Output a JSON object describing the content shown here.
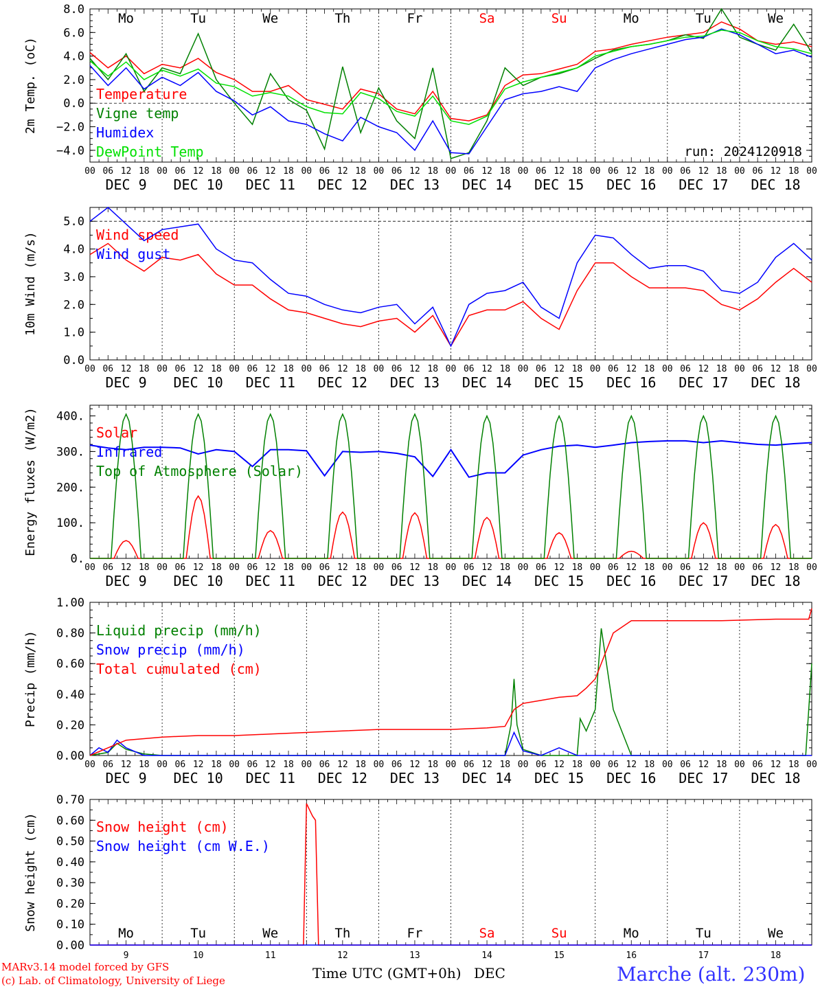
{
  "footer": {
    "model": "MARv3.14 model forced by GFS",
    "credit": "(c) Lab. of Climatology, University of Liege",
    "station": "Marche (alt. 230m)",
    "xlabel": "Time UTC (GMT+0h)",
    "month": "DEC"
  },
  "days": {
    "weekday": [
      "Mo",
      "Tu",
      "We",
      "Th",
      "Fr",
      "Sa",
      "Su",
      "Mo",
      "Tu",
      "We"
    ],
    "weekend": [
      false,
      false,
      false,
      false,
      false,
      true,
      true,
      false,
      false,
      false
    ],
    "date_labels": [
      "DEC  9",
      "DEC 10",
      "DEC 11",
      "DEC 12",
      "DEC 13",
      "DEC 14",
      "DEC 15",
      "DEC 16",
      "DEC 17",
      "DEC 18"
    ],
    "day_numbers": [
      "9",
      "10",
      "11",
      "12",
      "13",
      "14",
      "15",
      "16",
      "17",
      "18"
    ],
    "hour_ticks": [
      "00",
      "06",
      "12",
      "18"
    ],
    "last_tick": "00"
  },
  "colors": {
    "red": "#ff0000",
    "green": "#008000",
    "blue": "#0000ff",
    "lightgreen": "#00e000",
    "grid": "#000000"
  },
  "chart_data": [
    {
      "type": "line",
      "ylabel": "2m Temp. (oC)",
      "ylim": [
        -5,
        8
      ],
      "yticks": [
        "8.0",
        "6.0",
        "4.0",
        "2.0",
        "0.0",
        "−2.0",
        "−4.0"
      ],
      "annotation": "run: 2024120918",
      "x_unit": "hours since DEC 9 00 UTC",
      "series": [
        {
          "name": "Temperature",
          "color": "red",
          "x": [
            0,
            6,
            12,
            18,
            24,
            30,
            36,
            42,
            48,
            54,
            60,
            66,
            72,
            78,
            84,
            90,
            96,
            102,
            108,
            114,
            120,
            126,
            132,
            138,
            144,
            150,
            156,
            162,
            168,
            174,
            180,
            186,
            192,
            198,
            204,
            210,
            216,
            222,
            228,
            234,
            240
          ],
          "values": [
            4.3,
            3.0,
            4.0,
            2.5,
            3.3,
            3.0,
            3.8,
            2.6,
            2.0,
            1.0,
            1.0,
            1.5,
            0.3,
            -0.1,
            -0.5,
            1.2,
            0.8,
            -0.5,
            -0.9,
            1.0,
            -1.3,
            -1.5,
            -1.0,
            1.5,
            2.4,
            2.5,
            2.9,
            3.3,
            4.4,
            4.6,
            5.0,
            5.3,
            5.6,
            5.8,
            6.0,
            6.9,
            6.3,
            5.3,
            5.0,
            5.2,
            4.8
          ]
        },
        {
          "name": "Vigne temp",
          "color": "green",
          "x": [
            0,
            6,
            12,
            18,
            24,
            30,
            36,
            42,
            48,
            54,
            60,
            66,
            72,
            78,
            84,
            90,
            96,
            102,
            108,
            114,
            120,
            126,
            132,
            138,
            144,
            150,
            156,
            162,
            168,
            174,
            180,
            186,
            192,
            198,
            204,
            210,
            216,
            222,
            228,
            234,
            240
          ],
          "values": [
            3.8,
            2.0,
            4.2,
            1.0,
            3.0,
            2.5,
            5.9,
            2.0,
            0.0,
            -1.8,
            2.5,
            0.3,
            -0.6,
            -3.9,
            3.1,
            -2.5,
            1.3,
            -1.5,
            -3.0,
            3.0,
            -4.7,
            -4.2,
            -1.5,
            3.0,
            1.5,
            2.2,
            2.5,
            3.0,
            3.8,
            4.5,
            4.8,
            5.0,
            5.3,
            5.8,
            5.5,
            8.0,
            5.6,
            5.0,
            4.5,
            6.7,
            4.3
          ]
        },
        {
          "name": "Humidex",
          "color": "blue",
          "x": [
            0,
            6,
            12,
            18,
            24,
            30,
            36,
            42,
            48,
            54,
            60,
            66,
            72,
            78,
            84,
            90,
            96,
            102,
            108,
            114,
            120,
            126,
            132,
            138,
            144,
            150,
            156,
            162,
            168,
            174,
            180,
            186,
            192,
            198,
            204,
            210,
            216,
            222,
            228,
            234,
            240
          ],
          "values": [
            3.2,
            1.5,
            3.0,
            1.2,
            2.2,
            1.5,
            2.6,
            1.0,
            0.2,
            -1.0,
            -0.3,
            -1.5,
            -1.8,
            -2.6,
            -3.2,
            -1.2,
            -2.0,
            -2.5,
            -4.0,
            -1.5,
            -4.2,
            -4.3,
            -2.0,
            0.3,
            0.8,
            1.0,
            1.4,
            1.0,
            3.0,
            3.7,
            4.2,
            4.6,
            5.0,
            5.4,
            5.6,
            6.3,
            5.8,
            5.0,
            4.2,
            4.5,
            3.9
          ]
        },
        {
          "name": "DewPoint Temp",
          "color": "lightgreen",
          "x": [
            0,
            6,
            12,
            18,
            24,
            30,
            36,
            42,
            48,
            54,
            60,
            66,
            72,
            78,
            84,
            90,
            96,
            102,
            108,
            114,
            120,
            126,
            132,
            138,
            144,
            150,
            156,
            162,
            168,
            174,
            180,
            186,
            192,
            198,
            204,
            210,
            216,
            222,
            228,
            234,
            240
          ],
          "values": [
            3.6,
            2.3,
            3.5,
            2.0,
            2.8,
            2.3,
            2.9,
            1.7,
            1.4,
            0.6,
            0.9,
            0.6,
            -0.3,
            -0.8,
            -0.9,
            0.9,
            0.4,
            -0.7,
            -1.1,
            0.6,
            -1.5,
            -1.8,
            -1.1,
            1.2,
            1.8,
            2.2,
            2.6,
            3.0,
            4.0,
            4.4,
            4.8,
            5.0,
            5.3,
            5.6,
            5.7,
            6.2,
            6.0,
            5.3,
            4.8,
            4.6,
            4.2
          ]
        }
      ]
    },
    {
      "type": "line",
      "ylabel": "10m Wind (m/s)",
      "ylim": [
        0,
        5.5
      ],
      "yticks": [
        "5.0",
        "4.0",
        "3.0",
        "2.0",
        "1.0",
        "0.0"
      ],
      "series": [
        {
          "name": "Wind speed",
          "color": "red",
          "x": [
            0,
            6,
            12,
            18,
            24,
            30,
            36,
            42,
            48,
            54,
            60,
            66,
            72,
            78,
            84,
            90,
            96,
            102,
            108,
            114,
            120,
            126,
            132,
            138,
            144,
            150,
            156,
            162,
            168,
            174,
            180,
            186,
            192,
            198,
            204,
            210,
            216,
            222,
            228,
            234,
            240
          ],
          "values": [
            3.8,
            4.2,
            3.6,
            3.2,
            3.7,
            3.6,
            3.8,
            3.1,
            2.7,
            2.7,
            2.2,
            1.8,
            1.7,
            1.5,
            1.3,
            1.2,
            1.4,
            1.5,
            1.0,
            1.6,
            0.5,
            1.6,
            1.8,
            1.8,
            2.1,
            1.5,
            1.1,
            2.5,
            3.5,
            3.5,
            3.0,
            2.6,
            2.6,
            2.6,
            2.5,
            2.0,
            1.8,
            2.2,
            2.8,
            3.3,
            2.8
          ]
        },
        {
          "name": "Wind gust",
          "color": "blue",
          "x": [
            0,
            6,
            12,
            18,
            24,
            30,
            36,
            42,
            48,
            54,
            60,
            66,
            72,
            78,
            84,
            90,
            96,
            102,
            108,
            114,
            120,
            126,
            132,
            138,
            144,
            150,
            156,
            162,
            168,
            174,
            180,
            186,
            192,
            198,
            204,
            210,
            216,
            222,
            228,
            234,
            240
          ],
          "values": [
            5.0,
            5.5,
            4.9,
            4.3,
            4.7,
            4.8,
            4.9,
            4.0,
            3.6,
            3.5,
            2.9,
            2.4,
            2.3,
            2.0,
            1.8,
            1.7,
            1.9,
            2.0,
            1.3,
            1.9,
            0.5,
            2.0,
            2.4,
            2.5,
            2.8,
            1.9,
            1.5,
            3.5,
            4.5,
            4.4,
            3.8,
            3.3,
            3.4,
            3.4,
            3.2,
            2.5,
            2.4,
            2.8,
            3.7,
            4.2,
            3.6
          ]
        }
      ]
    },
    {
      "type": "line",
      "ylabel": "Energy fluxes (W/m2)",
      "ylim": [
        0,
        430
      ],
      "yticks": [
        "400.",
        "300.",
        "200.",
        "100.",
        "0."
      ],
      "series": [
        {
          "name": "Solar",
          "color": "red",
          "peaks": [
            50,
            175,
            78,
            130,
            128,
            115,
            72,
            20,
            100,
            95
          ]
        },
        {
          "name": "Infrared",
          "color": "blue",
          "x": [
            0,
            6,
            12,
            18,
            24,
            30,
            36,
            42,
            48,
            54,
            60,
            66,
            72,
            78,
            84,
            90,
            96,
            102,
            108,
            114,
            120,
            126,
            132,
            138,
            144,
            150,
            156,
            162,
            168,
            174,
            180,
            186,
            192,
            198,
            204,
            210,
            216,
            222,
            228,
            234,
            240
          ],
          "values": [
            318,
            310,
            305,
            312,
            312,
            310,
            293,
            305,
            300,
            258,
            305,
            305,
            302,
            232,
            300,
            298,
            300,
            295,
            285,
            230,
            305,
            228,
            240,
            240,
            290,
            305,
            315,
            318,
            312,
            318,
            325,
            328,
            330,
            330,
            325,
            330,
            325,
            320,
            318,
            322,
            325
          ]
        },
        {
          "name": "Top of Atmosphere (Solar)",
          "color": "green",
          "peaks": [
            405,
            405,
            405,
            405,
            405,
            400,
            400,
            400,
            400,
            400
          ]
        }
      ]
    },
    {
      "type": "line",
      "ylabel": "Precip (mm/h)",
      "ylim": [
        0,
        1.0
      ],
      "yticks": [
        "1.00",
        "0.80",
        "0.60",
        "0.40",
        "0.20",
        "0.00"
      ],
      "series": [
        {
          "name": "Liquid precip (mm/h)",
          "color": "green",
          "x": [
            0,
            6,
            9,
            12,
            18,
            24,
            48,
            72,
            96,
            120,
            138,
            140,
            141,
            142,
            144,
            150,
            156,
            162,
            163,
            165,
            168,
            170,
            174,
            180,
            186,
            216,
            238,
            240
          ],
          "values": [
            0.0,
            0.02,
            0.08,
            0.04,
            0.01,
            0.0,
            0.0,
            0.0,
            0.0,
            0.0,
            0.0,
            0.2,
            0.5,
            0.2,
            0.04,
            0.0,
            0.0,
            0.0,
            0.24,
            0.16,
            0.3,
            0.83,
            0.3,
            0.0,
            0.0,
            0.0,
            0.0,
            0.6
          ]
        },
        {
          "name": "Snow precip (mm/h)",
          "color": "blue",
          "x": [
            0,
            3,
            6,
            9,
            12,
            18,
            24,
            48,
            72,
            96,
            120,
            138,
            141,
            144,
            150,
            156,
            162,
            240
          ],
          "values": [
            0.0,
            0.05,
            0.02,
            0.1,
            0.05,
            0.0,
            0.0,
            0.0,
            0.0,
            0.0,
            0.0,
            0.0,
            0.15,
            0.03,
            0.0,
            0.05,
            0.0,
            0.0
          ]
        },
        {
          "name": "Total cumulated (cm)",
          "color": "red",
          "x": [
            0,
            6,
            12,
            18,
            24,
            36,
            48,
            60,
            72,
            84,
            96,
            108,
            120,
            132,
            138,
            141,
            144,
            150,
            156,
            162,
            165,
            168,
            174,
            180,
            186,
            192,
            198,
            210,
            228,
            236,
            239,
            240
          ],
          "values": [
            0.0,
            0.05,
            0.1,
            0.11,
            0.12,
            0.13,
            0.13,
            0.14,
            0.15,
            0.16,
            0.17,
            0.17,
            0.17,
            0.18,
            0.19,
            0.3,
            0.34,
            0.36,
            0.38,
            0.39,
            0.44,
            0.5,
            0.8,
            0.88,
            0.88,
            0.88,
            0.88,
            0.88,
            0.89,
            0.89,
            0.89,
            0.96
          ]
        }
      ]
    },
    {
      "type": "line",
      "ylabel": "Snow height (cm)",
      "ylim": [
        0,
        0.7
      ],
      "yticks": [
        "0.70",
        "0.60",
        "0.50",
        "0.40",
        "0.30",
        "0.20",
        "0.10",
        "0.00"
      ],
      "series": [
        {
          "name": "Snow height (cm)",
          "color": "red",
          "x": [
            0,
            71,
            72,
            74,
            75,
            76,
            240
          ],
          "values": [
            0,
            0,
            0.68,
            0.62,
            0.6,
            0,
            0
          ]
        },
        {
          "name": "Snow height (cm W.E.)",
          "color": "blue",
          "x": [
            0,
            240
          ],
          "values": [
            0,
            0
          ]
        }
      ]
    }
  ]
}
